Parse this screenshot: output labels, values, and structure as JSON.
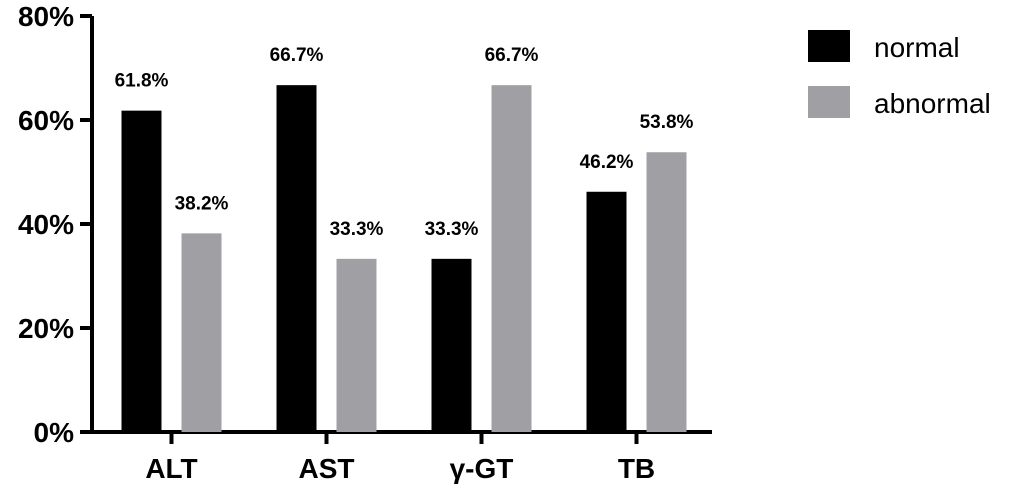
{
  "chart_data": {
    "type": "bar",
    "categories": [
      "ALT",
      "AST",
      "γ-GT",
      "TB"
    ],
    "series": [
      {
        "name": "normal",
        "color": "#000000",
        "values": [
          61.8,
          66.7,
          33.3,
          46.2
        ],
        "labels": [
          "61.8%",
          "66.7%",
          "33.3%",
          "46.2%"
        ]
      },
      {
        "name": "abnormal",
        "color": "#a0a0a4",
        "values": [
          38.2,
          33.3,
          66.7,
          53.8
        ],
        "labels": [
          "38.2%",
          "33.3%",
          "66.7%",
          "53.8%"
        ]
      }
    ],
    "yticks": [
      0,
      20,
      40,
      60,
      80
    ],
    "ytick_labels": [
      "0%",
      "20%",
      "40%",
      "60%",
      "80%"
    ],
    "ylim": [
      0,
      80
    ],
    "grid": false,
    "legend_position": "top-right"
  }
}
